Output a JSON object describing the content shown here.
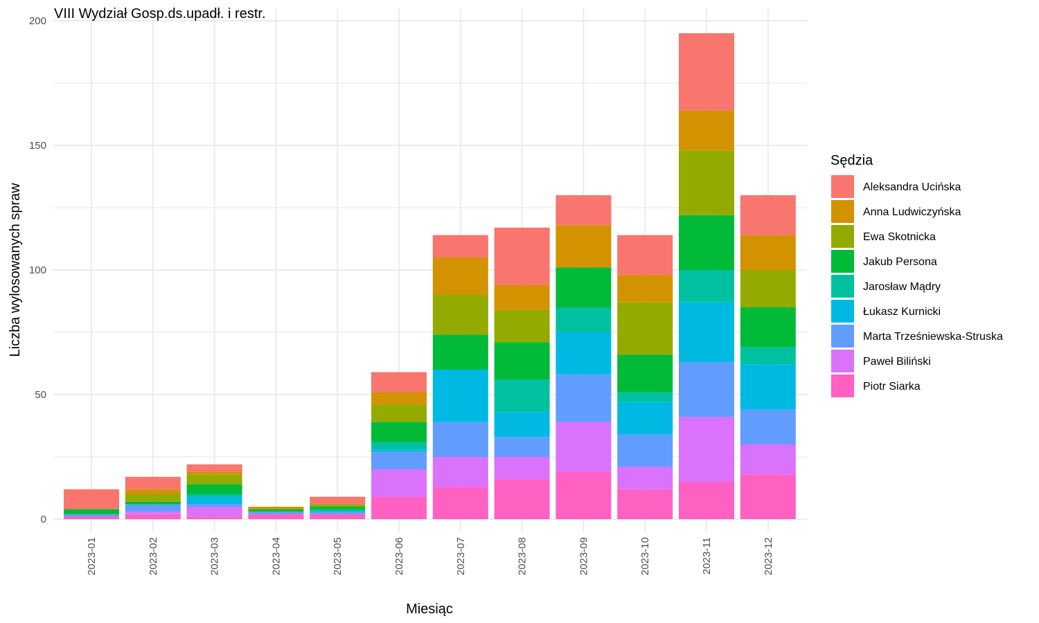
{
  "chart_data": {
    "type": "bar",
    "stacked": true,
    "title": "VIII Wydział Gosp.ds.upadł. i restr.",
    "xlabel": "Miesiąc",
    "ylabel": "Liczba wylosowanych spraw",
    "ylim": [
      0,
      200
    ],
    "yticks": [
      0,
      50,
      100,
      150,
      200
    ],
    "grid": true,
    "legend_title": "Sędzia",
    "legend_position": "right",
    "categories": [
      "2023-01",
      "2023-02",
      "2023-03",
      "2023-04",
      "2023-05",
      "2023-06",
      "2023-07",
      "2023-08",
      "2023-09",
      "2023-10",
      "2023-11",
      "2023-12"
    ],
    "series": [
      {
        "name": "Piotr Siarka",
        "color": "#FF61C3",
        "values": [
          1,
          2,
          1,
          2,
          2,
          9,
          13,
          16,
          19,
          12,
          15,
          18
        ]
      },
      {
        "name": "Paweł Biliński",
        "color": "#DB72FB",
        "values": [
          0,
          1,
          4,
          0,
          0,
          11,
          12,
          9,
          20,
          9,
          26,
          12
        ]
      },
      {
        "name": "Marta Trześniewska-Struska",
        "color": "#619CFF",
        "values": [
          1,
          3,
          1,
          1,
          1,
          7,
          14,
          8,
          19,
          13,
          22,
          14
        ]
      },
      {
        "name": "Łukasz Kurnicki",
        "color": "#00B9E3",
        "values": [
          0,
          0,
          3,
          0,
          0,
          1,
          21,
          10,
          17,
          13,
          24,
          18
        ]
      },
      {
        "name": "Jarosław Mądry",
        "color": "#00C19F",
        "values": [
          0,
          0,
          1,
          0,
          1,
          3,
          0,
          13,
          10,
          4,
          13,
          7
        ]
      },
      {
        "name": "Jakub Persona",
        "color": "#00BA38",
        "values": [
          2,
          1,
          4,
          1,
          1,
          8,
          14,
          15,
          16,
          15,
          22,
          16
        ]
      },
      {
        "name": "Ewa Skotnicka",
        "color": "#93AA00",
        "values": [
          0,
          3,
          4,
          0,
          1,
          7,
          16,
          13,
          0,
          21,
          26,
          15
        ]
      },
      {
        "name": "Anna Ludwiczyńska",
        "color": "#D39200",
        "values": [
          0,
          2,
          1,
          1,
          0,
          5,
          15,
          10,
          17,
          11,
          16,
          14
        ]
      },
      {
        "name": "Aleksandra Ucińska",
        "color": "#F8766D",
        "values": [
          8,
          5,
          3,
          0,
          3,
          8,
          9,
          23,
          12,
          16,
          31,
          16
        ]
      }
    ],
    "legend_order": [
      "Aleksandra Ucińska",
      "Anna Ludwiczyńska",
      "Ewa Skotnicka",
      "Jakub Persona",
      "Jarosław Mądry",
      "Łukasz Kurnicki",
      "Marta Trześniewska-Struska",
      "Paweł Biliński",
      "Piotr Siarka"
    ]
  }
}
